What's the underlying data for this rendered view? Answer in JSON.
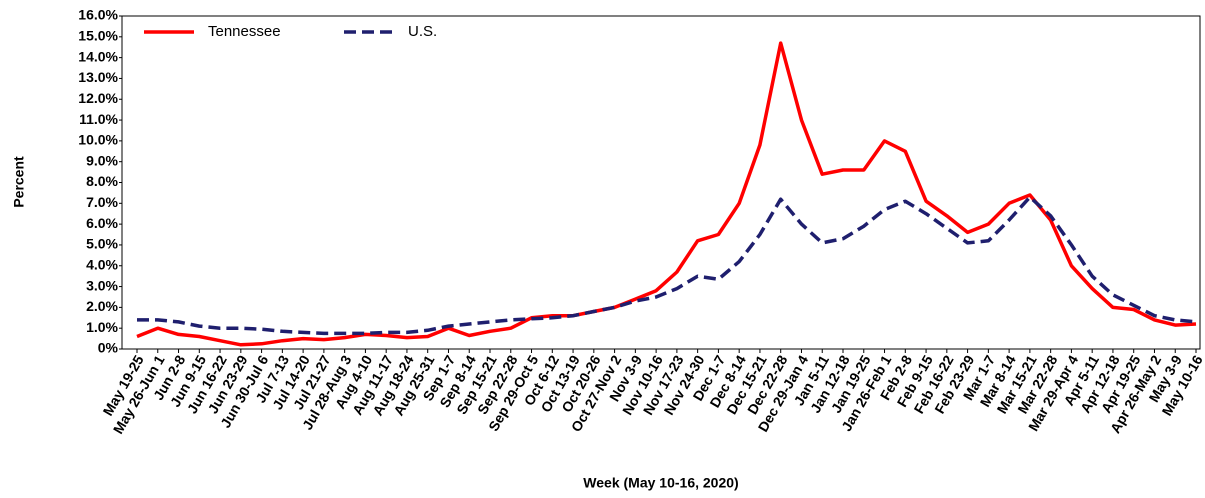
{
  "chart_data": {
    "type": "line",
    "x_label": "Week (May 10-16, 2020)",
    "y_label": "Percent",
    "categories": [
      "May 19-25",
      "May 26-Jun 1",
      "Jun 2-8",
      "Jun 9-15",
      "Jun 16-22",
      "Jun 23-29",
      "Jun 30-Jul 6",
      "Jul 7-13",
      "Jul 14-20",
      "Jul 21-27",
      "Jul 28-Aug 3",
      "Aug 4-10",
      "Aug 11-17",
      "Aug 18-24",
      "Aug 25-31",
      "Sep 1-7",
      "Sep 8-14",
      "Sep 15-21",
      "Sep 22-28",
      "Sep 29-Oct 5",
      "Oct 6-12",
      "Oct 13-19",
      "Oct 20-26",
      "Oct 27-Nov 2",
      "Nov 3-9",
      "Nov 10-16",
      "Nov 17-23",
      "Nov 24-30",
      "Dec 1-7",
      "Dec 8-14",
      "Dec 15-21",
      "Dec 22-28",
      "Dec 29-Jan 4",
      "Jan 5-11",
      "Jan 12-18",
      "Jan 19-25",
      "Jan 26-Feb 1",
      "Feb 2-8",
      "Feb 9-15",
      "Feb 16-22",
      "Feb 23-29",
      "Mar 1-7",
      "Mar 8-14",
      "Mar 15-21",
      "Mar 22-28",
      "Mar 29-Apr 4",
      "Apr 5-11",
      "Apr 12-18",
      "Apr 19-25",
      "Apr 26-May 2",
      "May 3-9",
      "May 10-16"
    ],
    "series": [
      {
        "name": "Tennessee",
        "color": "#ff0000",
        "line_style": "solid",
        "values": [
          0.6,
          1.0,
          0.7,
          0.6,
          0.4,
          0.2,
          0.25,
          0.4,
          0.5,
          0.45,
          0.55,
          0.7,
          0.65,
          0.55,
          0.6,
          1.0,
          0.65,
          0.85,
          1.0,
          1.5,
          1.6,
          1.6,
          1.8,
          2.0,
          2.4,
          2.8,
          3.7,
          5.2,
          5.5,
          7.0,
          9.8,
          14.7,
          11.0,
          8.4,
          8.6,
          8.6,
          10.0,
          9.5,
          7.1,
          6.4,
          5.6,
          6.0,
          7.0,
          7.4,
          6.2,
          4.0,
          2.9,
          2.0,
          1.9,
          1.4,
          1.15,
          1.2
        ]
      },
      {
        "name": "U.S.",
        "color": "#1f1f6e",
        "line_style": "dashed",
        "values": [
          1.4,
          1.4,
          1.3,
          1.1,
          1.0,
          1.0,
          0.95,
          0.85,
          0.8,
          0.75,
          0.75,
          0.75,
          0.8,
          0.8,
          0.9,
          1.1,
          1.2,
          1.3,
          1.4,
          1.45,
          1.5,
          1.6,
          1.8,
          2.0,
          2.3,
          2.5,
          2.9,
          3.5,
          3.35,
          4.2,
          5.5,
          7.2,
          6.0,
          5.1,
          5.3,
          5.9,
          6.7,
          7.1,
          6.5,
          5.8,
          5.1,
          5.2,
          6.2,
          7.3,
          6.4,
          5.0,
          3.5,
          2.6,
          2.1,
          1.6,
          1.4,
          1.3
        ]
      }
    ],
    "ylim": [
      0,
      16
    ],
    "yticks": [
      {
        "value": 0,
        "label": "0%"
      },
      {
        "value": 1,
        "label": "1.0%"
      },
      {
        "value": 2,
        "label": "2.0%"
      },
      {
        "value": 3,
        "label": "3.0%"
      },
      {
        "value": 4,
        "label": "4.0%"
      },
      {
        "value": 5,
        "label": "5.0%"
      },
      {
        "value": 6,
        "label": "6.0%"
      },
      {
        "value": 7,
        "label": "7.0%"
      },
      {
        "value": 8,
        "label": "8.0%"
      },
      {
        "value": 9,
        "label": "9.0%"
      },
      {
        "value": 10,
        "label": "10.0%"
      },
      {
        "value": 11,
        "label": "11.0%"
      },
      {
        "value": 12,
        "label": "12.0%"
      },
      {
        "value": 13,
        "label": "13.0%"
      },
      {
        "value": 14,
        "label": "14.0%"
      },
      {
        "value": 15,
        "label": "15.0%"
      },
      {
        "value": 16,
        "label": "16.0%"
      }
    ],
    "grid": false,
    "legend_position": "top-left"
  }
}
